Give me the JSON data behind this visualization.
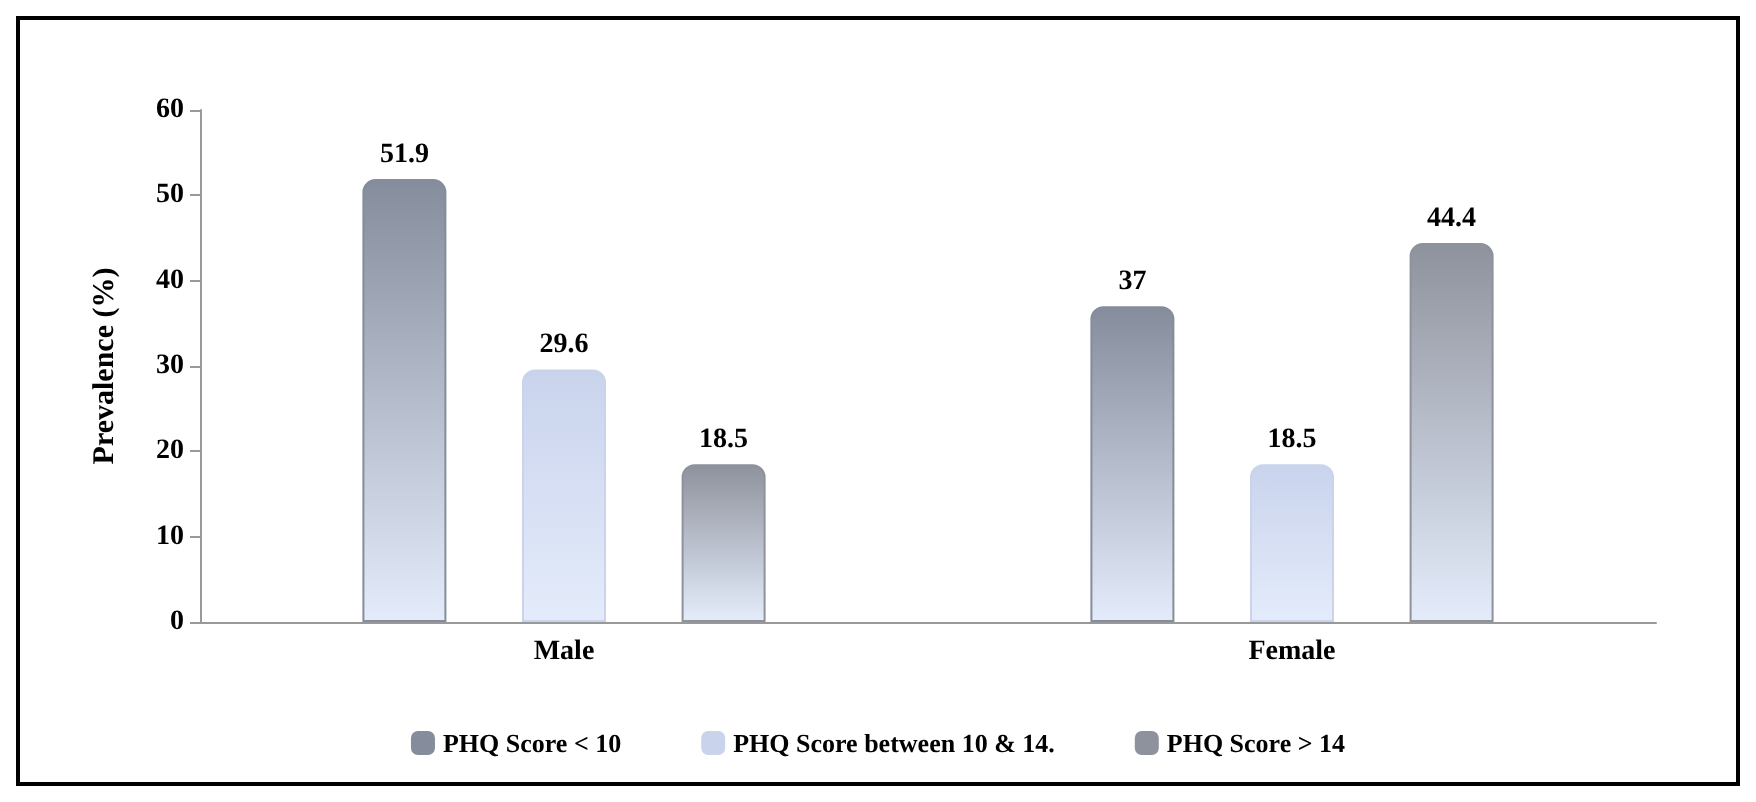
{
  "chart_data": {
    "type": "bar",
    "ylabel": "Prevalence (%)",
    "categories": [
      "Male",
      "Female"
    ],
    "series": [
      {
        "name": "PHQ Score < 10",
        "color": "#858c9c",
        "values": [
          51.9,
          37
        ]
      },
      {
        "name": "PHQ Score between 10 & 14.",
        "color": "#c9d3ec",
        "values": [
          29.6,
          18.5
        ]
      },
      {
        "name": "PHQ Score > 14",
        "color": "#8e929c",
        "values": [
          18.5,
          44.4
        ]
      }
    ],
    "ylim": [
      0,
      60
    ],
    "yticks": [
      0,
      10,
      20,
      30,
      40,
      50,
      60
    ],
    "data_labels": true,
    "grid": false,
    "legend": "bottom"
  }
}
